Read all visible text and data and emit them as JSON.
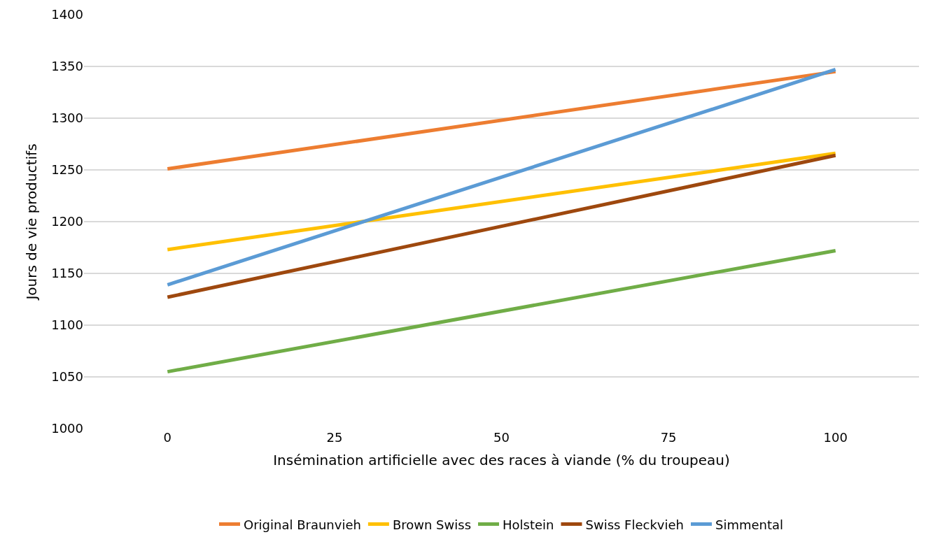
{
  "chart_data": {
    "type": "line",
    "xlabel": "Insémination artificielle avec des races à viande (% du troupeau)",
    "ylabel": "Jours de vie productifs",
    "x": [
      0,
      100
    ],
    "series": [
      {
        "name": "Original Braunvieh",
        "color": "#ed7d31",
        "values": [
          1251,
          1345
        ]
      },
      {
        "name": "Brown Swiss",
        "color": "#ffc000",
        "values": [
          1173,
          1266
        ]
      },
      {
        "name": "Holstein",
        "color": "#70ad47",
        "values": [
          1055,
          1172
        ]
      },
      {
        "name": "Swiss Fleckvieh",
        "color": "#9e480e",
        "values": [
          1127,
          1264
        ]
      },
      {
        "name": "Simmental",
        "color": "#5b9bd5",
        "values": [
          1139,
          1347
        ]
      }
    ],
    "xlim": [
      -12.5,
      112.5
    ],
    "xticks": [
      0,
      25,
      50,
      75,
      100
    ],
    "ylim": [
      1000,
      1400
    ],
    "yticks": [
      1000,
      1050,
      1100,
      1150,
      1200,
      1250,
      1300,
      1350,
      1400
    ],
    "grid": "y",
    "legend": "bottom",
    "marker": "none",
    "line_style": "solid"
  }
}
